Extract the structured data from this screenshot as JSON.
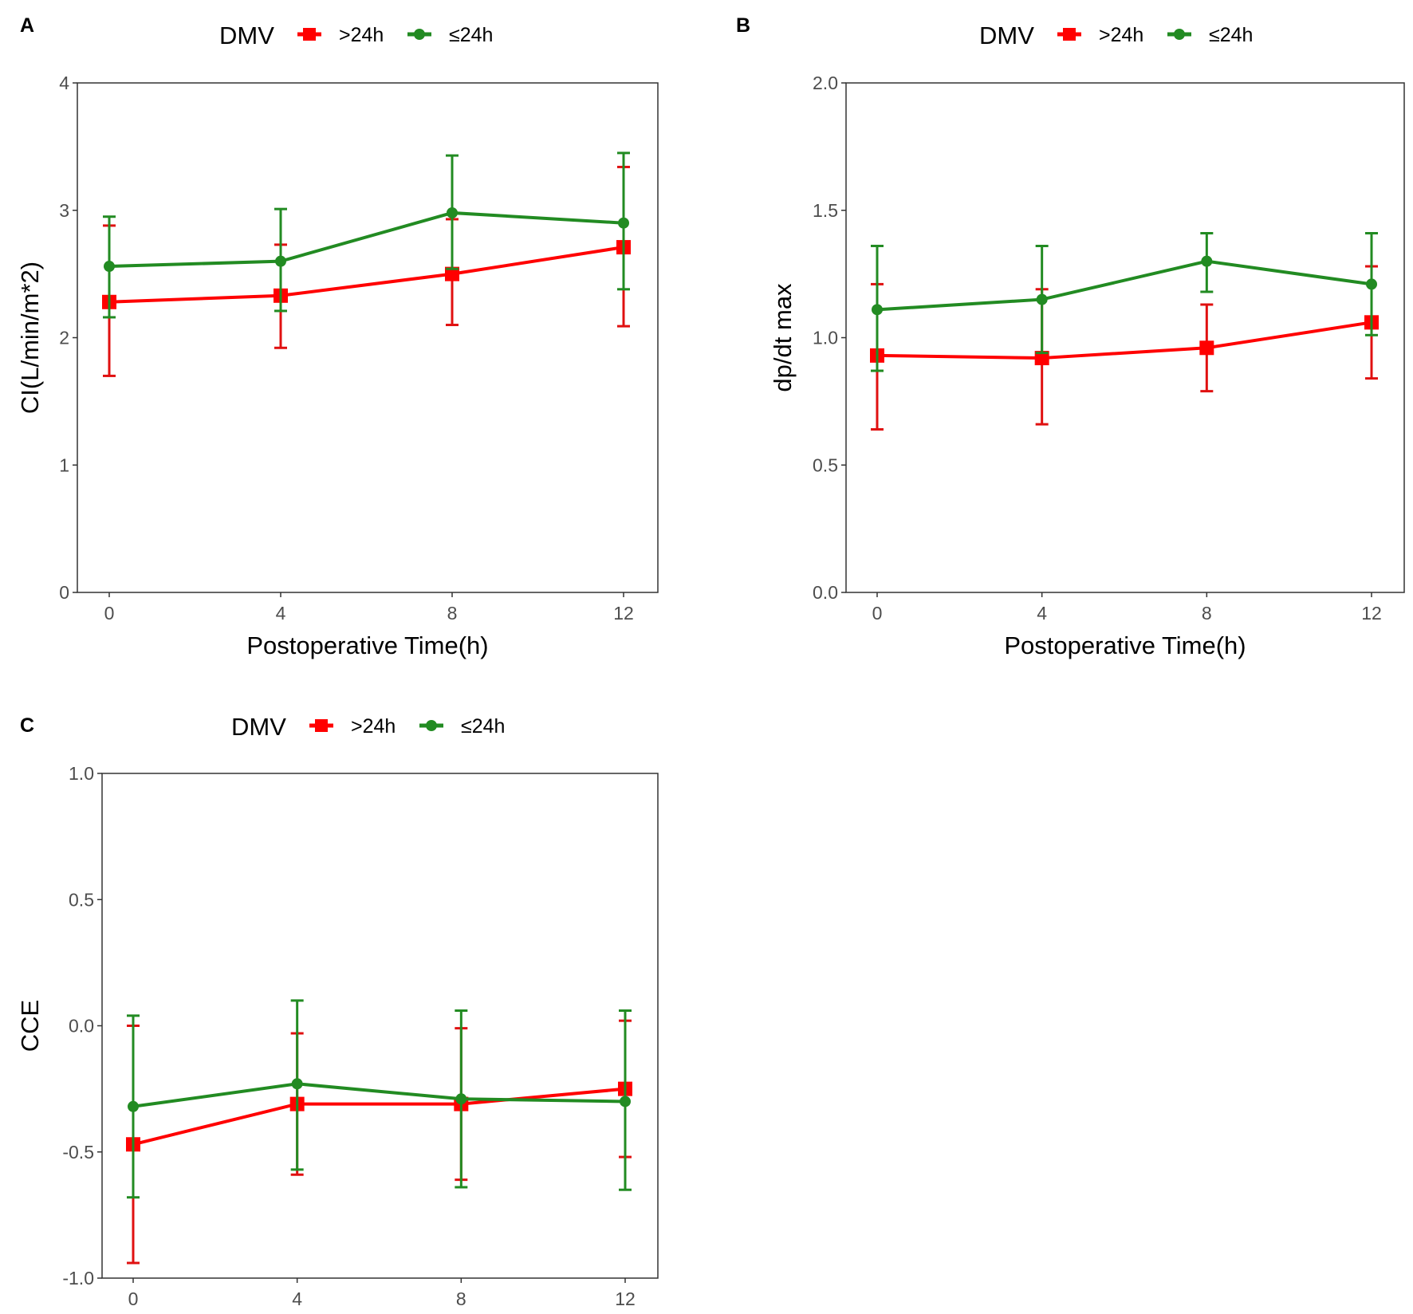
{
  "colors": {
    "gt24": "#FF0000",
    "le24": "#228B22"
  },
  "chart_data": [
    {
      "type": "line",
      "panel": "A",
      "legend_title": "DMV",
      "legend_placement": "top",
      "xlabel": "Postoperative Time(h)",
      "ylabel": "CI(L/min/m*2)",
      "x": [
        0,
        4,
        8,
        12
      ],
      "x_ticks": [
        "0",
        "4",
        "8",
        "12"
      ],
      "ylim": [
        0,
        4
      ],
      "y_ticks": [
        "0",
        "1",
        "2",
        "3",
        "4"
      ],
      "y_tick_values": [
        0,
        1,
        2,
        3,
        4
      ],
      "grid": false,
      "series": [
        {
          "name": ">24h",
          "marker": "square",
          "values": [
            2.28,
            2.33,
            2.5,
            2.71
          ],
          "upper": [
            2.88,
            2.73,
            2.93,
            3.34
          ],
          "lower": [
            1.7,
            1.92,
            2.1,
            2.09
          ]
        },
        {
          "name": "≤24h",
          "marker": "circle",
          "values": [
            2.56,
            2.6,
            2.98,
            2.9
          ],
          "upper": [
            2.95,
            3.01,
            3.43,
            3.45
          ],
          "lower": [
            2.16,
            2.21,
            2.54,
            2.38
          ]
        }
      ]
    },
    {
      "type": "line",
      "panel": "B",
      "legend_title": "DMV",
      "legend_placement": "top",
      "xlabel": "Postoperative Time(h)",
      "ylabel": "dp/dt max",
      "x": [
        0,
        4,
        8,
        12
      ],
      "x_ticks": [
        "0",
        "4",
        "8",
        "12"
      ],
      "ylim": [
        0,
        2
      ],
      "y_ticks": [
        "0.0",
        "0.5",
        "1.0",
        "1.5",
        "2.0"
      ],
      "y_tick_values": [
        0,
        0.5,
        1,
        1.5,
        2
      ],
      "grid": false,
      "series": [
        {
          "name": ">24h",
          "marker": "square",
          "values": [
            0.93,
            0.92,
            0.96,
            1.06
          ],
          "upper": [
            1.21,
            1.19,
            1.13,
            1.28
          ],
          "lower": [
            0.64,
            0.66,
            0.79,
            0.84
          ]
        },
        {
          "name": "≤24h",
          "marker": "circle",
          "values": [
            1.11,
            1.15,
            1.3,
            1.21
          ],
          "upper": [
            1.36,
            1.36,
            1.41,
            1.41
          ],
          "lower": [
            0.87,
            0.94,
            1.18,
            1.01
          ]
        }
      ]
    },
    {
      "type": "line",
      "panel": "C",
      "legend_title": "DMV",
      "legend_placement": "top",
      "xlabel": "Postoperative Time(h)",
      "ylabel": "CCE",
      "x": [
        0,
        4,
        8,
        12
      ],
      "x_ticks": [
        "0",
        "4",
        "8",
        "12"
      ],
      "ylim": [
        -1,
        1
      ],
      "y_ticks": [
        "-1.0",
        "-0.5",
        "0.0",
        "0.5",
        "1.0"
      ],
      "y_tick_values": [
        -1,
        -0.5,
        0,
        0.5,
        1
      ],
      "grid": false,
      "series": [
        {
          "name": ">24h",
          "marker": "square",
          "values": [
            -0.47,
            -0.31,
            -0.31,
            -0.25
          ],
          "upper": [
            0.0,
            -0.03,
            -0.01,
            0.02
          ],
          "lower": [
            -0.94,
            -0.59,
            -0.61,
            -0.52
          ]
        },
        {
          "name": "≤24h",
          "marker": "circle",
          "values": [
            -0.32,
            -0.23,
            -0.29,
            -0.3
          ],
          "upper": [
            0.04,
            0.1,
            0.06,
            0.06
          ],
          "lower": [
            -0.68,
            -0.57,
            -0.64,
            -0.65
          ]
        }
      ]
    }
  ]
}
